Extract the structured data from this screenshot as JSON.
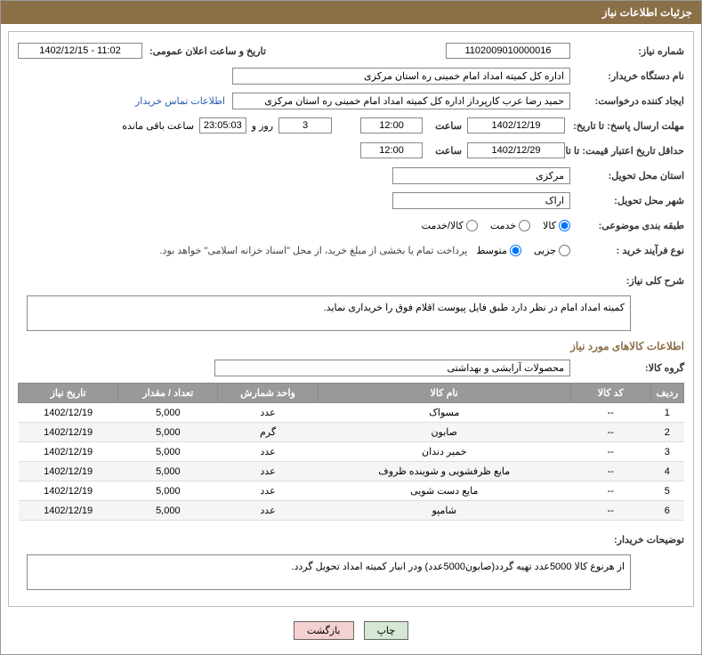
{
  "panel_title": "جزئیات اطلاعات نیاز",
  "labels": {
    "need_no": "شماره نیاز:",
    "announce_date": "تاریخ و ساعت اعلان عمومی:",
    "buyer_org": "نام دستگاه خریدار:",
    "requester": "ایجاد کننده درخواست:",
    "contact_link": "اطلاعات تماس خریدار",
    "reply_deadline": "مهلت ارسال پاسخ: تا تاریخ:",
    "hour": "ساعت",
    "days_and": "روز و",
    "remaining": "ساعت باقی مانده",
    "price_validity": "حداقل تاریخ اعتبار قیمت: تا تاریخ:",
    "delivery_province": "استان محل تحویل:",
    "delivery_city": "شهر محل تحویل:",
    "category": "طبقه بندی موضوعی:",
    "purchase_type": "نوع فرآیند خرید :",
    "general_desc": "شرح کلی نیاز:",
    "items_info": "اطلاعات کالاهای مورد نیاز",
    "goods_group": "گروه کالا:",
    "buyer_notes": "توضیحات خریدار:",
    "btn_print": "چاپ",
    "btn_back": "بازگشت"
  },
  "values": {
    "need_no": "1102009010000016",
    "announce_date": "1402/12/15 - 11:02",
    "buyer_org": "اداره کل کمیته امداد امام خمینی  ره  استان مرکزی",
    "requester": "حمید رضا عرب کارپرداز اداره کل کمیته امداد امام خمینی  ره  استان مرکزی",
    "reply_date": "1402/12/19",
    "reply_time": "12:00",
    "days_left": "3",
    "countdown": "23:05:03",
    "validity_date": "1402/12/29",
    "validity_time": "12:00",
    "province": "مرکزی",
    "city": "اراک",
    "payment_note": "پرداخت تمام یا بخشی از مبلغ خرید، از محل \"اسناد خزانه اسلامی\" خواهد بود.",
    "general_desc": "کمیته امداد امام در نظر دارد طبق فایل پیوست اقلام فوق را خریداری نماید.",
    "goods_group": "محصولات آرایشی و بهداشتی",
    "buyer_notes": "از هرنوع کالا 5000عدد تهیه گردد(صابون5000عدد) ودر انبار کمیته امداد تحویل گردد."
  },
  "radios": {
    "category": [
      {
        "label": "کالا",
        "checked": true
      },
      {
        "label": "خدمت",
        "checked": false
      },
      {
        "label": "کالا/خدمت",
        "checked": false
      }
    ],
    "purchase_type": [
      {
        "label": "جزیی",
        "checked": false
      },
      {
        "label": "متوسط",
        "checked": true
      }
    ]
  },
  "table": {
    "headers": [
      "ردیف",
      "کد کالا",
      "نام کالا",
      "واحد شمارش",
      "تعداد / مقدار",
      "تاریخ نیاز"
    ],
    "rows": [
      [
        "1",
        "--",
        "مسواک",
        "عدد",
        "5,000",
        "1402/12/19"
      ],
      [
        "2",
        "--",
        "صابون",
        "گرم",
        "5,000",
        "1402/12/19"
      ],
      [
        "3",
        "--",
        "خمیر دندان",
        "عدد",
        "5,000",
        "1402/12/19"
      ],
      [
        "4",
        "--",
        "مایع ظرفشویی و شوینده ظروف",
        "عدد",
        "5,000",
        "1402/12/19"
      ],
      [
        "5",
        "--",
        "مایع دست شویی",
        "عدد",
        "5,000",
        "1402/12/19"
      ],
      [
        "6",
        "--",
        "شامپو",
        "عدد",
        "5,000",
        "1402/12/19"
      ]
    ]
  },
  "colors": {
    "header_bg": "#8b6f47",
    "th_bg": "#999999"
  }
}
